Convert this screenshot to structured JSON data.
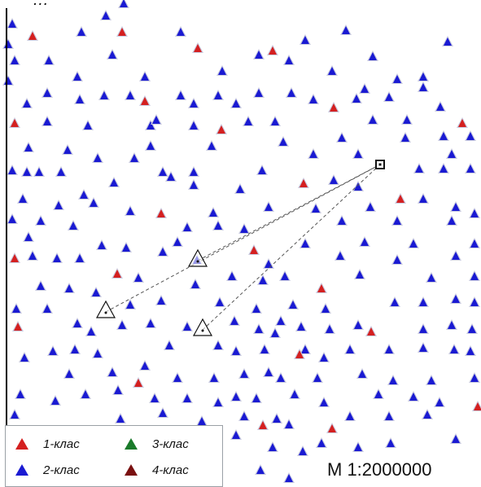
{
  "map": {
    "title": "…",
    "scale_label": "M 1:2000000",
    "colors": {
      "class1": "#d42020",
      "class2": "#1a1ad2",
      "class3": "#1a7a2a",
      "class4": "#7a1010",
      "halo": "#c9cbe0",
      "dashed_line": "#555555",
      "frame": "#000000"
    },
    "legend": [
      {
        "label": "1-клас",
        "color": "#d42020"
      },
      {
        "label": "3-клас",
        "color": "#1a7a2a"
      },
      {
        "label": "2-клас",
        "color": "#1a1ad2"
      },
      {
        "label": "4-клас",
        "color": "#7a1010"
      }
    ],
    "highlighted_points": [
      "start",
      "mid",
      "end",
      "target"
    ]
  }
}
